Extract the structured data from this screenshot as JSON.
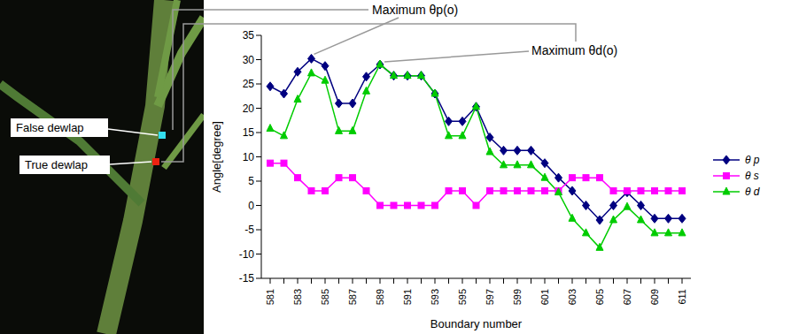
{
  "chart_data": {
    "type": "line",
    "x_label": "Boundary number",
    "y_label": "Angle[degree]",
    "categories": [
      "581",
      null,
      "583",
      null,
      "585",
      null,
      "587",
      null,
      "589",
      null,
      "591",
      null,
      "593",
      null,
      "595",
      null,
      "597",
      null,
      "599",
      null,
      "601",
      null,
      "603",
      null,
      "605",
      null,
      "607",
      null,
      "609",
      null,
      "611"
    ],
    "series": [
      {
        "name": "θ p",
        "color": "#000080",
        "marker": "diamond",
        "values": [
          24.5,
          23,
          27.5,
          30.2,
          28.7,
          21,
          21,
          26.5,
          29,
          26.7,
          26.7,
          26.7,
          23,
          17.3,
          17.3,
          20.3,
          14,
          11.3,
          11.3,
          11.3,
          8.7,
          5.7,
          3,
          0,
          -3,
          0,
          2.7,
          0,
          -2.7,
          -2.7,
          -2.7
        ]
      },
      {
        "name": "θ s",
        "color": "#ff00ff",
        "marker": "square",
        "values": [
          8.7,
          8.7,
          5.7,
          3,
          3,
          5.7,
          5.7,
          3,
          0,
          0,
          0,
          0,
          0,
          3,
          3,
          0,
          3,
          3,
          3,
          3,
          3,
          3,
          5.7,
          5.7,
          5.7,
          3,
          3,
          3,
          3,
          3,
          3
        ]
      },
      {
        "name": "θ d",
        "color": "#00cc00",
        "marker": "triangle",
        "values": [
          15.8,
          14.3,
          21.8,
          27.2,
          25.7,
          15.3,
          15.3,
          23.5,
          29,
          26.7,
          26.7,
          26.7,
          23,
          14.3,
          14.3,
          20.3,
          11,
          8.3,
          8.3,
          8.3,
          5.7,
          2.7,
          -2.7,
          -5.7,
          -8.7,
          -3,
          -0.3,
          -3,
          -5.7,
          -5.7,
          -5.7
        ]
      }
    ],
    "ylim": [
      -15,
      35
    ],
    "yticks": [
      -15,
      -10,
      -5,
      0,
      5,
      10,
      15,
      20,
      25,
      30,
      35
    ],
    "grid": false,
    "legend": "right",
    "annotations": [
      {
        "text": "Maximum θp(o)",
        "series": "θ p"
      },
      {
        "text": "Maximum θd(o)",
        "series": "θ d"
      }
    ]
  },
  "photo": {
    "labels": [
      "False dewlap",
      "True dewlap"
    ]
  }
}
